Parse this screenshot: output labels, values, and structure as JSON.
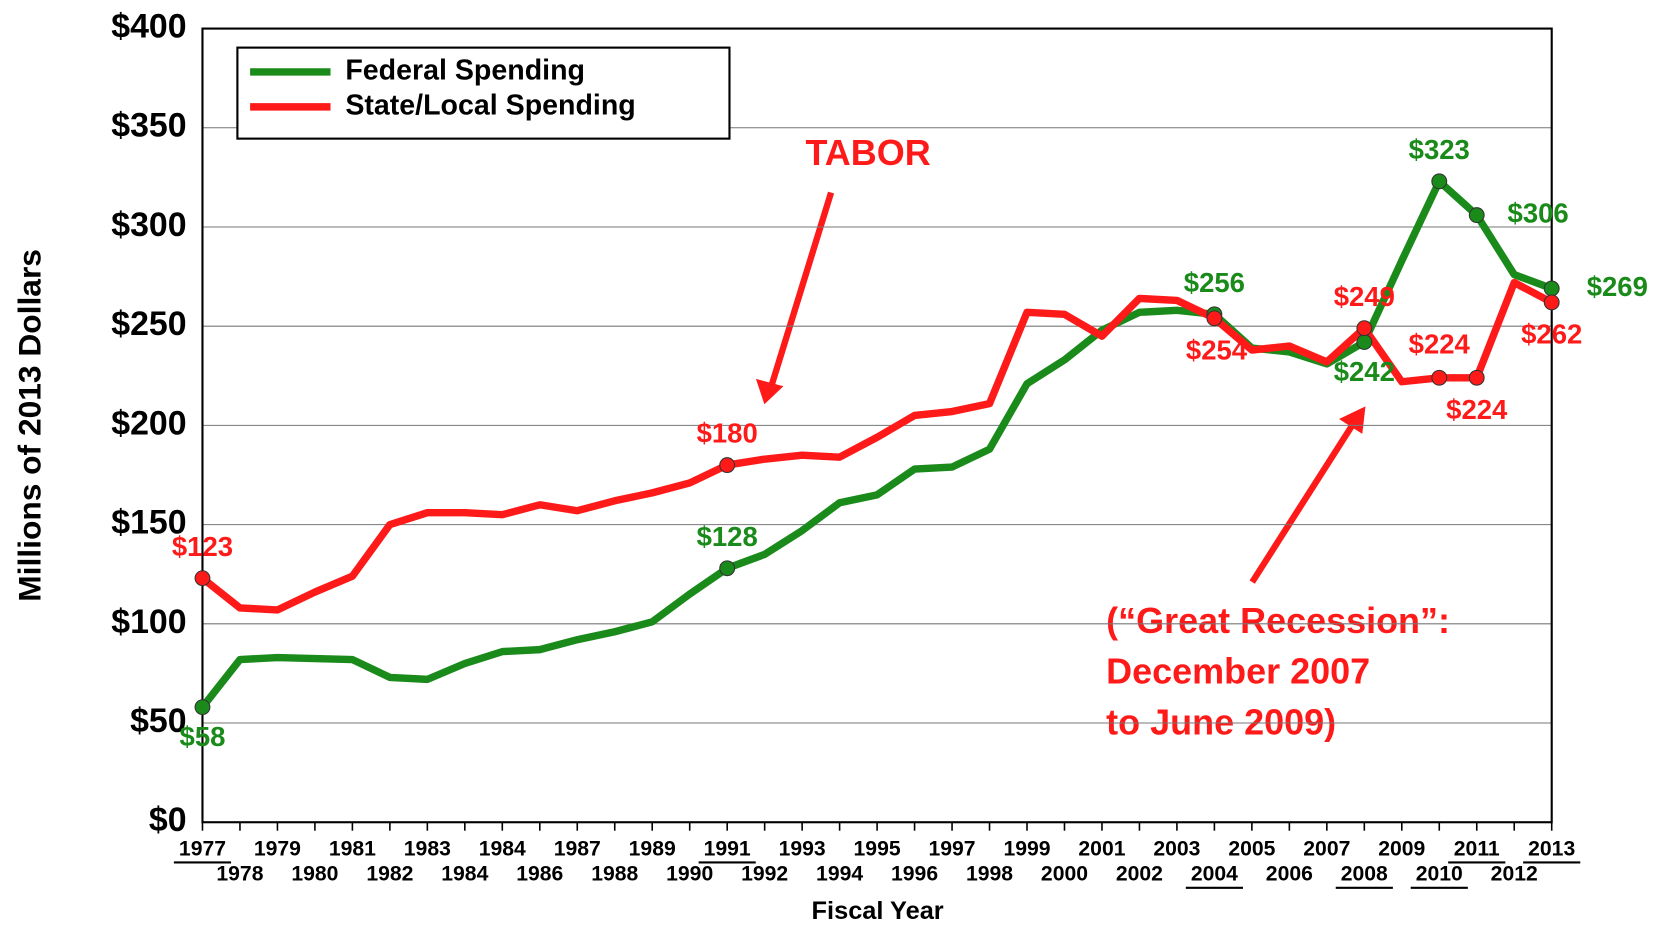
{
  "chart_data": {
    "type": "line",
    "y_label": "Millions of 2013 Dollars",
    "x_label": "Fiscal Year",
    "categories": [
      "1977",
      "1978",
      "1979",
      "1980",
      "1981",
      "1982",
      "1983",
      "1984",
      "1984",
      "1986",
      "1987",
      "1988",
      "1989",
      "1990",
      "1991",
      "1992",
      "1993",
      "1994",
      "1995",
      "1996",
      "1997",
      "1998",
      "1999",
      "2000",
      "2001",
      "2002",
      "2003",
      "2004",
      "2005",
      "2006",
      "2007",
      "2008",
      "2009",
      "2010",
      "2011",
      "2012",
      "2013"
    ],
    "underline": [
      0,
      14,
      27,
      31,
      33,
      34,
      36
    ],
    "series": [
      {
        "name": "Federal Spending",
        "color": "#1a8a1a",
        "values": [
          58,
          82,
          83,
          82.5,
          82,
          73,
          72,
          80,
          86,
          87,
          92,
          96,
          101,
          115,
          128,
          135,
          147,
          161,
          165,
          178,
          179,
          188,
          221,
          233,
          248,
          257,
          258,
          256,
          239,
          237,
          231,
          242,
          283,
          323,
          306,
          276,
          269
        ],
        "value_labels": [
          "$58",
          null,
          null,
          null,
          null,
          null,
          null,
          null,
          null,
          null,
          null,
          null,
          null,
          null,
          "$128",
          null,
          null,
          null,
          null,
          null,
          null,
          null,
          null,
          null,
          null,
          null,
          null,
          "$256",
          null,
          null,
          null,
          "$242",
          null,
          "$323",
          "$306",
          null,
          "$269"
        ]
      },
      {
        "name": "State/Local Spending",
        "color": "#ff1a1a",
        "values": [
          123,
          108,
          107,
          116,
          124,
          150,
          156,
          156,
          155,
          160,
          157,
          162,
          166,
          171,
          180,
          183,
          185,
          184,
          194,
          205,
          207,
          211,
          257,
          256,
          245,
          264,
          263,
          254,
          238,
          240,
          232,
          249,
          222,
          224,
          224,
          272,
          262
        ],
        "value_labels": [
          "$123",
          null,
          null,
          null,
          null,
          null,
          null,
          null,
          null,
          null,
          null,
          null,
          null,
          null,
          "$180",
          null,
          null,
          null,
          null,
          null,
          null,
          null,
          null,
          null,
          null,
          null,
          null,
          "$254",
          null,
          null,
          null,
          "$249",
          null,
          "$224",
          "$224",
          null,
          "$262"
        ]
      }
    ],
    "ylim": [
      0,
      400
    ],
    "yticks": [
      {
        "value": 0,
        "label": "$0"
      },
      {
        "value": 50,
        "label": "$50"
      },
      {
        "value": 100,
        "label": "$100"
      },
      {
        "value": 150,
        "label": "$150"
      },
      {
        "value": 200,
        "label": "$200"
      },
      {
        "value": 250,
        "label": "$250"
      },
      {
        "value": 300,
        "label": "$300"
      },
      {
        "value": 350,
        "label": "$350"
      },
      {
        "value": 400,
        "label": "$400"
      }
    ],
    "grid": true,
    "legend": "upper left",
    "annotations": [
      "TABOR",
      "(“Great Recession”:",
      "December 2007",
      "to June 2009)"
    ]
  }
}
